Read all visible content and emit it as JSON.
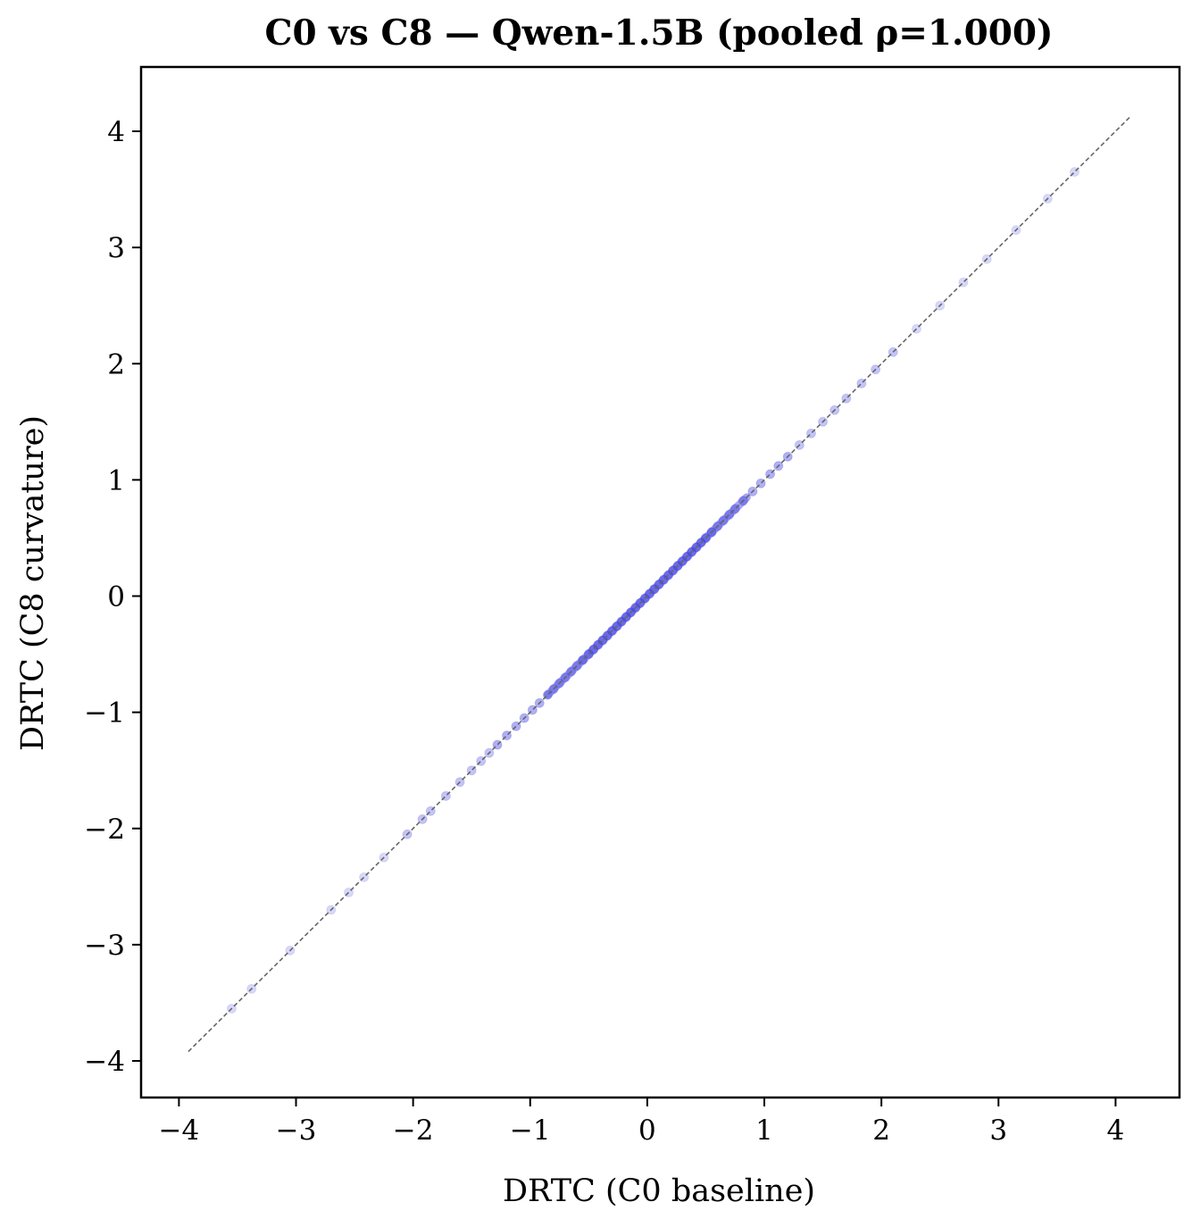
{
  "chart_data": {
    "type": "scatter",
    "title": "C0 vs C8 — Qwen-1.5B  (pooled ρ=1.000)",
    "xlabel": "DRTC (C0 baseline)",
    "ylabel": "DRTC (C8 curvature)",
    "xlim": [
      -4.2,
      4.55
    ],
    "ylim": [
      -4.3,
      4.55
    ],
    "xticks": [
      -4,
      -3,
      -2,
      -1,
      0,
      1,
      2,
      3,
      4
    ],
    "yticks": [
      -4,
      -3,
      -2,
      -1,
      0,
      1,
      2,
      3,
      4
    ],
    "xtick_labels": [
      "−4",
      "−3",
      "−2",
      "−1",
      "0",
      "1",
      "2",
      "3",
      "4"
    ],
    "ytick_labels": [
      "−4",
      "−3",
      "−2",
      "−1",
      "0",
      "1",
      "2",
      "3",
      "4"
    ],
    "grid": false,
    "point_color": "#3a3ae0",
    "reference_line": {
      "x": [
        -3.92,
        4.13
      ],
      "y": [
        -3.92,
        4.13
      ],
      "style": "dashed",
      "color": "#666666"
    },
    "series": [
      {
        "x": [
          -3.55,
          -3.38,
          -3.05,
          -2.7,
          -2.55,
          -2.42,
          -2.25,
          -2.05,
          -1.92,
          -1.85,
          -1.72,
          -1.6,
          -1.5,
          -1.42,
          -1.35,
          -1.28,
          -1.2,
          -1.12,
          -1.05,
          -0.98,
          -0.92,
          -0.85,
          -0.8,
          -0.75,
          -0.7,
          -0.65,
          -0.6,
          -0.55,
          -0.5,
          -0.46,
          -0.42,
          -0.38,
          -0.34,
          -0.3,
          -0.26,
          -0.22,
          -0.18,
          -0.14,
          -0.1,
          -0.06,
          -0.02,
          0.02,
          0.06,
          0.1,
          0.14,
          0.18,
          0.22,
          0.26,
          0.3,
          0.34,
          0.38,
          0.42,
          0.46,
          0.5,
          0.55,
          0.6,
          0.65,
          0.7,
          0.75,
          0.82,
          0.9,
          0.97,
          1.05,
          1.12,
          1.2,
          1.3,
          1.4,
          1.5,
          1.6,
          1.7,
          1.83,
          1.95,
          2.1,
          2.3,
          2.5,
          2.7,
          2.9,
          3.15,
          3.42,
          3.65
        ],
        "y": [
          -3.55,
          -3.38,
          -3.05,
          -2.7,
          -2.55,
          -2.42,
          -2.25,
          -2.05,
          -1.92,
          -1.85,
          -1.72,
          -1.6,
          -1.5,
          -1.42,
          -1.35,
          -1.28,
          -1.2,
          -1.12,
          -1.05,
          -0.98,
          -0.92,
          -0.85,
          -0.8,
          -0.75,
          -0.7,
          -0.65,
          -0.6,
          -0.55,
          -0.5,
          -0.46,
          -0.42,
          -0.38,
          -0.34,
          -0.3,
          -0.26,
          -0.22,
          -0.18,
          -0.14,
          -0.1,
          -0.06,
          -0.02,
          0.02,
          0.06,
          0.1,
          0.14,
          0.18,
          0.22,
          0.26,
          0.3,
          0.34,
          0.38,
          0.42,
          0.46,
          0.5,
          0.55,
          0.6,
          0.65,
          0.7,
          0.75,
          0.82,
          0.9,
          0.97,
          1.05,
          1.12,
          1.2,
          1.3,
          1.4,
          1.5,
          1.6,
          1.7,
          1.83,
          1.95,
          2.1,
          2.3,
          2.5,
          2.7,
          2.9,
          3.15,
          3.42,
          3.65
        ]
      }
    ]
  }
}
